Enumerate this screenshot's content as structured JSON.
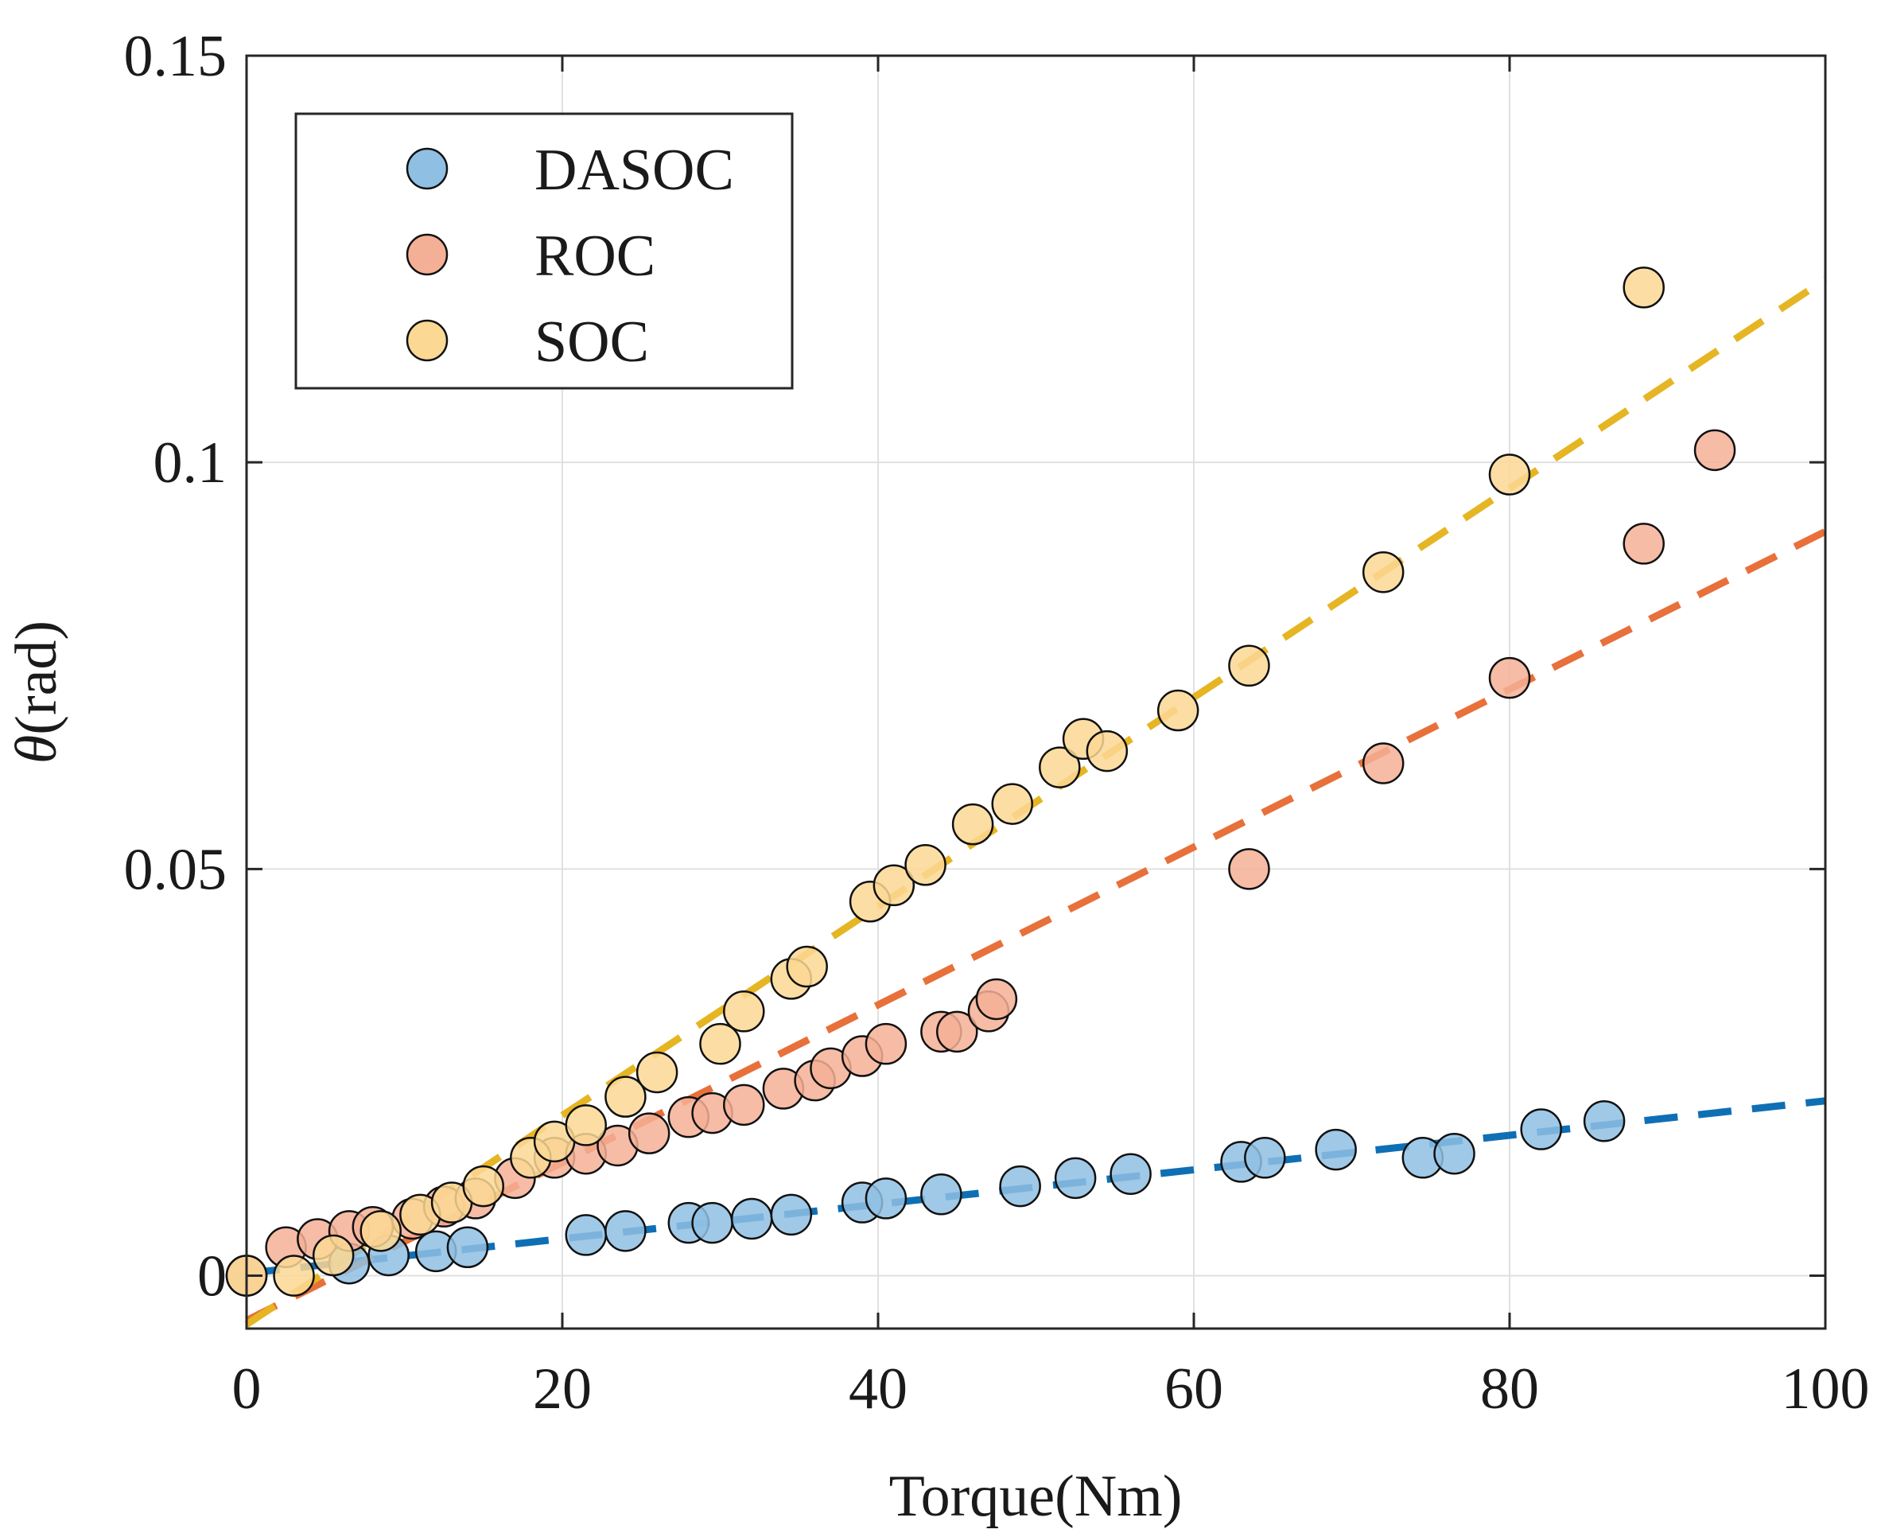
{
  "chart_data": {
    "type": "scatter",
    "title": "",
    "xlabel": "Torque(Nm)",
    "ylabel_symbol": "θ",
    "ylabel_unit": "(rad)",
    "xlim": [
      0,
      100
    ],
    "ylim": [
      -0.0065,
      0.15
    ],
    "xticks": [
      0,
      20,
      40,
      60,
      80,
      100
    ],
    "xtick_labels": [
      "0",
      "20",
      "40",
      "60",
      "80",
      "100"
    ],
    "yticks": [
      0,
      0.05,
      0.1,
      0.15
    ],
    "ytick_labels": [
      "0",
      "0.05",
      "0.1",
      "0.15"
    ],
    "grid": true,
    "legend_position": "top-left",
    "series": [
      {
        "name": "DASOC",
        "face_color": "#8fbfe3",
        "line_color": "#0f6fb5",
        "points": [
          [
            0,
            0
          ],
          [
            6.5,
            0.0015
          ],
          [
            9,
            0.0025
          ],
          [
            12,
            0.003
          ],
          [
            14,
            0.0035
          ],
          [
            21.5,
            0.005
          ],
          [
            24,
            0.0055
          ],
          [
            28,
            0.0065
          ],
          [
            29.5,
            0.0065
          ],
          [
            32,
            0.007
          ],
          [
            34.5,
            0.0075
          ],
          [
            39,
            0.009
          ],
          [
            40.5,
            0.0095
          ],
          [
            44,
            0.01
          ],
          [
            49,
            0.011
          ],
          [
            52.5,
            0.012
          ],
          [
            56,
            0.0125
          ],
          [
            63,
            0.014
          ],
          [
            64.5,
            0.0145
          ],
          [
            69,
            0.0155
          ],
          [
            74.5,
            0.0145
          ],
          [
            76.5,
            0.015
          ],
          [
            82,
            0.018
          ],
          [
            86,
            0.019
          ]
        ],
        "fit": [
          [
            0,
            0.0003
          ],
          [
            100,
            0.0215
          ]
        ]
      },
      {
        "name": "ROC",
        "face_color": "#f4b096",
        "line_color": "#e8703a",
        "points": [
          [
            0,
            0
          ],
          [
            2.5,
            0.0035
          ],
          [
            4.5,
            0.0045
          ],
          [
            6.5,
            0.0055
          ],
          [
            8,
            0.006
          ],
          [
            10.5,
            0.007
          ],
          [
            12.5,
            0.0085
          ],
          [
            14.5,
            0.0095
          ],
          [
            17,
            0.012
          ],
          [
            19.5,
            0.0145
          ],
          [
            21.5,
            0.015
          ],
          [
            23.5,
            0.016
          ],
          [
            25.5,
            0.0175
          ],
          [
            28,
            0.0195
          ],
          [
            29.5,
            0.02
          ],
          [
            31.5,
            0.021
          ],
          [
            34,
            0.023
          ],
          [
            36,
            0.024
          ],
          [
            37,
            0.0255
          ],
          [
            39,
            0.027
          ],
          [
            40.5,
            0.0285
          ],
          [
            44,
            0.03
          ],
          [
            45,
            0.03
          ],
          [
            47,
            0.0325
          ],
          [
            47.5,
            0.034
          ],
          [
            63.5,
            0.05
          ],
          [
            72,
            0.063
          ],
          [
            80,
            0.0735
          ],
          [
            88.5,
            0.09
          ],
          [
            93,
            0.1015
          ]
        ],
        "fit": [
          [
            0,
            -0.0055
          ],
          [
            100,
            0.0915
          ]
        ]
      },
      {
        "name": "SOC",
        "face_color": "#fbd894",
        "line_color": "#e6b523",
        "points": [
          [
            0,
            0
          ],
          [
            3,
            0
          ],
          [
            5.5,
            0.0025
          ],
          [
            8.5,
            0.0055
          ],
          [
            11,
            0.0075
          ],
          [
            13,
            0.009
          ],
          [
            15,
            0.011
          ],
          [
            18,
            0.0145
          ],
          [
            19.5,
            0.0165
          ],
          [
            21.5,
            0.0185
          ],
          [
            24,
            0.022
          ],
          [
            26,
            0.025
          ],
          [
            30,
            0.0285
          ],
          [
            31.5,
            0.0325
          ],
          [
            34.5,
            0.0365
          ],
          [
            35.5,
            0.038
          ],
          [
            39.5,
            0.046
          ],
          [
            41,
            0.048
          ],
          [
            43,
            0.0505
          ],
          [
            46,
            0.0555
          ],
          [
            48.5,
            0.058
          ],
          [
            51.5,
            0.0625
          ],
          [
            53,
            0.066
          ],
          [
            54.5,
            0.0645
          ],
          [
            59,
            0.0695
          ],
          [
            63.5,
            0.075
          ],
          [
            72,
            0.0865
          ],
          [
            80,
            0.0985
          ],
          [
            88.5,
            0.1215
          ]
        ],
        "fit": [
          [
            0,
            -0.006
          ],
          [
            100,
            0.1225
          ]
        ]
      }
    ]
  }
}
